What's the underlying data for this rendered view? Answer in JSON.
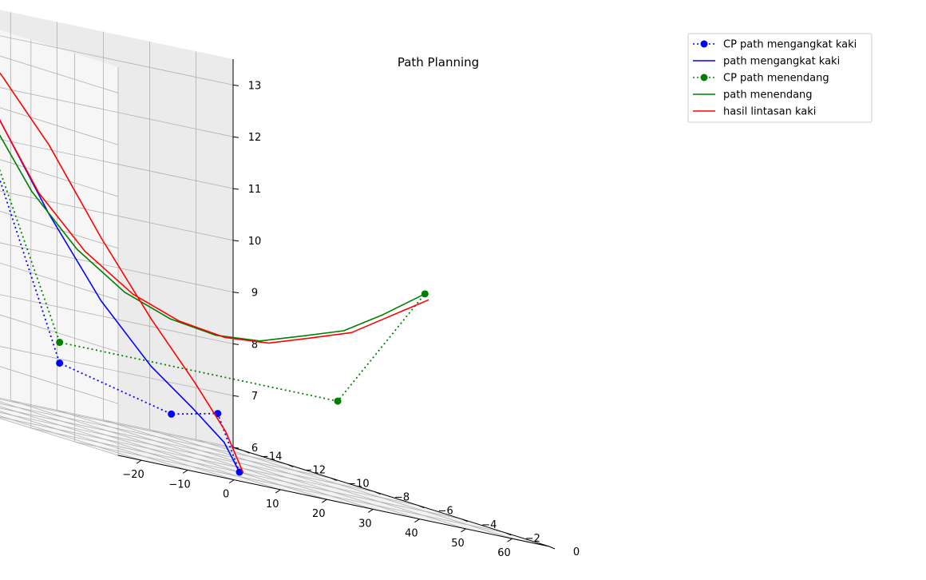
{
  "chart_data": {
    "type": "line",
    "projection": "3d",
    "title": "Path Planning",
    "xlabel": "",
    "ylabel": "",
    "zlabel": "",
    "grid": true,
    "legend_position": "top-right",
    "xlim": [
      -25,
      68
    ],
    "ylim": [
      0,
      -14.5
    ],
    "zlim": [
      6,
      13.5
    ],
    "xticks": [
      "−20",
      "−10",
      "0",
      "10",
      "20",
      "30",
      "40",
      "50",
      "60"
    ],
    "xtick_values": [
      -20,
      -10,
      0,
      10,
      20,
      30,
      40,
      50,
      60
    ],
    "yticks": [
      "0",
      "−2",
      "−4",
      "−6",
      "−8",
      "−10",
      "−12",
      "−14"
    ],
    "ytick_values": [
      0,
      -2,
      -4,
      -6,
      -8,
      -10,
      -12,
      -14
    ],
    "zticks": [
      "6",
      "7",
      "8",
      "9",
      "10",
      "11",
      "12",
      "13"
    ],
    "ztick_values": [
      6,
      7,
      8,
      9,
      10,
      11,
      12,
      13
    ],
    "series": [
      {
        "name": "CP path mengangkat kaki",
        "style": "dotted-marker",
        "color": "#0000ff",
        "points": [
          [
            20,
            -4,
            6.0
          ],
          [
            20,
            -5,
            7.0
          ],
          [
            10,
            -5,
            6.8
          ],
          [
            0,
            -8,
            7.2
          ],
          [
            0,
            -13,
            13.0
          ]
        ]
      },
      {
        "name": "path mengangkat kaki",
        "style": "solid",
        "color": "#0000ff",
        "points": [
          [
            20,
            -4,
            6.0
          ],
          [
            18.1,
            -4.3,
            6.5
          ],
          [
            14.6,
            -5.0,
            7.0
          ],
          [
            10.3,
            -6.0,
            7.6
          ],
          [
            6.1,
            -7.4,
            8.6
          ],
          [
            2.8,
            -9.1,
            10.0
          ],
          [
            0.7,
            -11.0,
            11.6
          ],
          [
            0,
            -13,
            13.0
          ]
        ]
      },
      {
        "name": "CP path menendang",
        "style": "dotted-marker",
        "color": "#008000",
        "points": [
          [
            0,
            -13,
            13.0
          ],
          [
            0,
            -8,
            7.6
          ],
          [
            60,
            -8,
            7.6
          ],
          [
            60,
            -4,
            10.2
          ]
        ]
      },
      {
        "name": "path menendang",
        "style": "solid",
        "color": "#008000",
        "points": [
          [
            0,
            -13,
            13.0
          ],
          [
            1.6,
            -11.7,
            11.6
          ],
          [
            5.7,
            -10.5,
            10.3
          ],
          [
            11.3,
            -9.6,
            9.4
          ],
          [
            17.8,
            -8.8,
            8.8
          ],
          [
            24.4,
            -8.1,
            8.5
          ],
          [
            30.9,
            -7.4,
            8.4
          ],
          [
            37.1,
            -6.7,
            8.5
          ],
          [
            43.0,
            -6.0,
            8.8
          ],
          [
            48.6,
            -5.3,
            9.1
          ],
          [
            54.3,
            -4.7,
            9.6
          ],
          [
            60,
            -4,
            10.2
          ]
        ]
      },
      {
        "name": "hasil lintasan kaki",
        "style": "solid",
        "color": "#ff0000",
        "points": [
          [
            20.8,
            -4.0,
            6.0
          ],
          [
            19.4,
            -4.5,
            6.7
          ],
          [
            16.4,
            -5.3,
            7.5
          ],
          [
            12.2,
            -6.4,
            8.5
          ],
          [
            8.0,
            -7.8,
            9.8
          ],
          [
            4.8,
            -9.5,
            11.3
          ],
          [
            2.4,
            -11.2,
            12.4
          ],
          [
            1.0,
            -12.8,
            13.0
          ],
          [
            2.6,
            -11.6,
            11.7
          ],
          [
            6.8,
            -10.4,
            10.3
          ],
          [
            12.5,
            -9.5,
            9.4
          ],
          [
            19.1,
            -8.7,
            8.8
          ],
          [
            25.8,
            -8.0,
            8.5
          ],
          [
            32.3,
            -7.3,
            8.4
          ],
          [
            38.5,
            -6.6,
            8.5
          ],
          [
            44.3,
            -5.9,
            8.8
          ],
          [
            49.8,
            -5.2,
            9.1
          ],
          [
            55.3,
            -4.6,
            9.6
          ],
          [
            60.8,
            -4.0,
            10.1
          ]
        ]
      }
    ]
  }
}
